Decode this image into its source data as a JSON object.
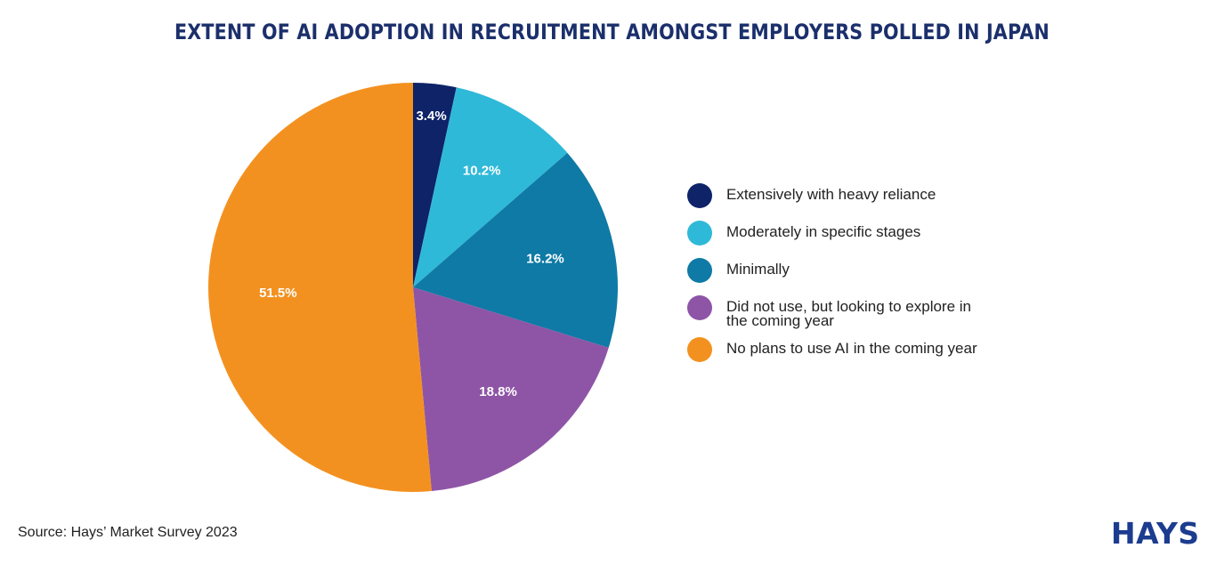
{
  "chart_data": {
    "type": "pie",
    "title": "EXTENT OF AI ADOPTION IN RECRUITMENT AMONGST EMPLOYERS POLLED IN JAPAN",
    "categories": [
      "Extensively with heavy reliance",
      "Moderately in specific stages",
      " Minimally",
      "Did not use, but looking to explore in the coming year",
      "No plans to use AI in the coming year"
    ],
    "values": [
      3.4,
      10.2,
      16.2,
      18.8,
      51.5
    ],
    "labels": [
      "3.4%",
      "10.2%",
      "16.2%",
      "18.8%",
      "51.5%"
    ],
    "colors": [
      "#0e2368",
      "#2fb9d8",
      "#0f7aa5",
      "#8e55a6",
      "#f39120"
    ],
    "legend_position": "right"
  },
  "source": "Source: Hays’ Market Survey 2023",
  "logo": "HAYS"
}
